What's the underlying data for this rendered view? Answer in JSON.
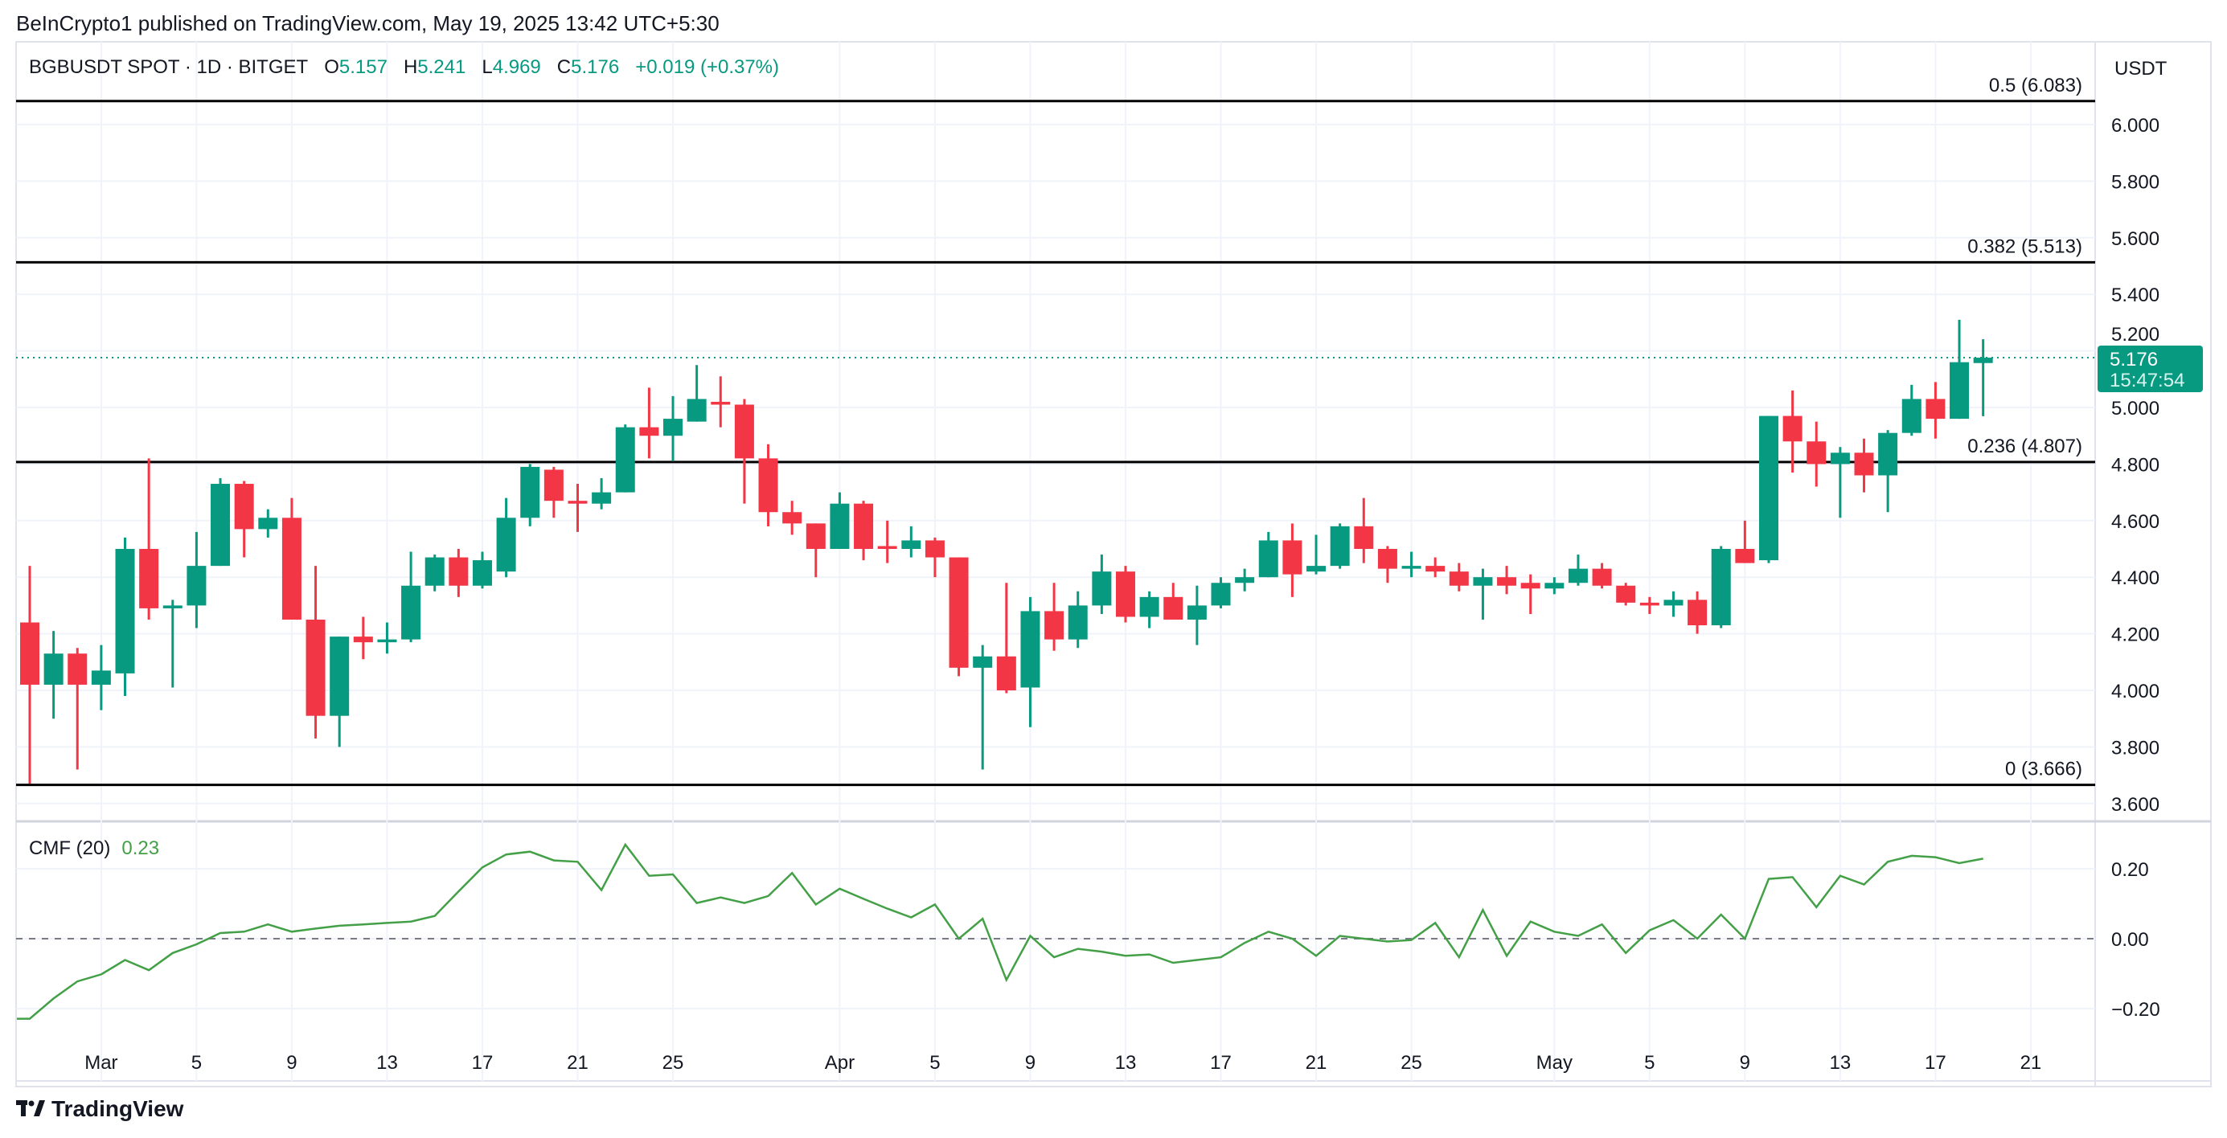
{
  "header": {
    "published": "BeInCrypto1 published on TradingView.com, May 19, 2025 13:42 UTC+5:30"
  },
  "legend": {
    "symbol": "BGBUSDT SPOT · 1D · BITGET",
    "o_label": "O",
    "o": "5.157",
    "h_label": "H",
    "h": "5.241",
    "l_label": "L",
    "l": "4.969",
    "c_label": "C",
    "c": "5.176",
    "change": "+0.019 (+0.37%)"
  },
  "currency": "USDT",
  "last_price": {
    "price": "5.176",
    "countdown": "15:47:54"
  },
  "indicator": {
    "name": "CMF (20)",
    "value": "0.23"
  },
  "footer": {
    "brand": "TradingView"
  },
  "colors": {
    "up": "#089981",
    "down": "#F23645",
    "cmf": "#43a047",
    "fib": "#000000",
    "grid": "#f0f3fa"
  },
  "chart_data": [
    {
      "type": "candlestick",
      "price_ticks": [
        "3.600",
        "3.800",
        "4.000",
        "4.200",
        "4.400",
        "4.600",
        "4.800",
        "5.000",
        "5.200",
        "5.400",
        "5.600",
        "5.800",
        "6.000"
      ],
      "ylim": [
        3.55,
        6.17
      ],
      "x_ticks": [
        {
          "label": "Mar",
          "date": "Mar 1"
        },
        {
          "label": "5",
          "date": "Mar 5"
        },
        {
          "label": "9",
          "date": "Mar 9"
        },
        {
          "label": "13",
          "date": "Mar 13"
        },
        {
          "label": "17",
          "date": "Mar 17"
        },
        {
          "label": "21",
          "date": "Mar 21"
        },
        {
          "label": "25",
          "date": "Mar 25"
        },
        {
          "label": "Apr",
          "date": "Apr 1"
        },
        {
          "label": "5",
          "date": "Apr 5"
        },
        {
          "label": "9",
          "date": "Apr 9"
        },
        {
          "label": "13",
          "date": "Apr 13"
        },
        {
          "label": "17",
          "date": "Apr 17"
        },
        {
          "label": "21",
          "date": "Apr 21"
        },
        {
          "label": "25",
          "date": "Apr 25"
        },
        {
          "label": "May",
          "date": "May 1"
        },
        {
          "label": "5",
          "date": "May 5"
        },
        {
          "label": "9",
          "date": "May 9"
        },
        {
          "label": "13",
          "date": "May 13"
        },
        {
          "label": "17",
          "date": "May 17"
        },
        {
          "label": "21",
          "date": "May 21"
        }
      ],
      "fib_levels": [
        {
          "label": "0.5 (6.083)",
          "value": 6.083
        },
        {
          "label": "0.382 (5.513)",
          "value": 5.513
        },
        {
          "label": "0.236 (4.807)",
          "value": 4.807
        },
        {
          "label": "0 (3.666)",
          "value": 3.666
        }
      ],
      "candles_columns": [
        "date",
        "open",
        "high",
        "low",
        "close"
      ],
      "candles": [
        [
          "Feb 26",
          4.24,
          4.44,
          3.67,
          4.02
        ],
        [
          "Feb 27",
          4.02,
          4.21,
          3.9,
          4.13
        ],
        [
          "Feb 28",
          4.13,
          4.15,
          3.72,
          4.02
        ],
        [
          "Mar 1",
          4.02,
          4.16,
          3.93,
          4.07
        ],
        [
          "Mar 2",
          4.06,
          4.54,
          3.98,
          4.5
        ],
        [
          "Mar 3",
          4.5,
          4.82,
          4.25,
          4.29
        ],
        [
          "Mar 4",
          4.29,
          4.32,
          4.01,
          4.3
        ],
        [
          "Mar 5",
          4.3,
          4.56,
          4.22,
          4.44
        ],
        [
          "Mar 6",
          4.44,
          4.75,
          4.44,
          4.73
        ],
        [
          "Mar 7",
          4.73,
          4.74,
          4.47,
          4.57
        ],
        [
          "Mar 8",
          4.57,
          4.64,
          4.54,
          4.61
        ],
        [
          "Mar 9",
          4.61,
          4.68,
          4.25,
          4.25
        ],
        [
          "Mar 10",
          4.25,
          4.44,
          3.83,
          3.91
        ],
        [
          "Mar 11",
          3.91,
          4.19,
          3.8,
          4.19
        ],
        [
          "Mar 12",
          4.19,
          4.26,
          4.11,
          4.17
        ],
        [
          "Mar 13",
          4.17,
          4.24,
          4.13,
          4.18
        ],
        [
          "Mar 14",
          4.18,
          4.49,
          4.17,
          4.37
        ],
        [
          "Mar 15",
          4.37,
          4.48,
          4.35,
          4.47
        ],
        [
          "Mar 16",
          4.47,
          4.5,
          4.33,
          4.37
        ],
        [
          "Mar 17",
          4.37,
          4.49,
          4.36,
          4.46
        ],
        [
          "Mar 18",
          4.42,
          4.68,
          4.4,
          4.61
        ],
        [
          "Mar 19",
          4.61,
          4.8,
          4.58,
          4.79
        ],
        [
          "Mar 20",
          4.78,
          4.79,
          4.61,
          4.67
        ],
        [
          "Mar 21",
          4.67,
          4.73,
          4.56,
          4.66
        ],
        [
          "Mar 22",
          4.66,
          4.75,
          4.64,
          4.7
        ],
        [
          "Mar 23",
          4.7,
          4.94,
          4.7,
          4.93
        ],
        [
          "Mar 24",
          4.93,
          5.07,
          4.82,
          4.9
        ],
        [
          "Mar 25",
          4.9,
          5.04,
          4.81,
          4.96
        ],
        [
          "Mar 26",
          4.95,
          5.15,
          4.95,
          5.03
        ],
        [
          "Mar 27",
          5.02,
          5.11,
          4.93,
          5.01
        ],
        [
          "Mar 28",
          5.01,
          5.03,
          4.66,
          4.82
        ],
        [
          "Mar 29",
          4.82,
          4.87,
          4.58,
          4.63
        ],
        [
          "Mar 30",
          4.63,
          4.67,
          4.55,
          4.59
        ],
        [
          "Mar 31",
          4.59,
          4.59,
          4.4,
          4.5
        ],
        [
          "Apr 1",
          4.5,
          4.7,
          4.5,
          4.66
        ],
        [
          "Apr 2",
          4.66,
          4.67,
          4.46,
          4.5
        ],
        [
          "Apr 3",
          4.51,
          4.6,
          4.45,
          4.5
        ],
        [
          "Apr 4",
          4.5,
          4.58,
          4.47,
          4.53
        ],
        [
          "Apr 5",
          4.53,
          4.54,
          4.4,
          4.47
        ],
        [
          "Apr 6",
          4.47,
          4.47,
          4.05,
          4.08
        ],
        [
          "Apr 7",
          4.08,
          4.16,
          3.72,
          4.12
        ],
        [
          "Apr 8",
          4.12,
          4.38,
          3.99,
          4.0
        ],
        [
          "Apr 9",
          4.01,
          4.33,
          3.87,
          4.28
        ],
        [
          "Apr 10",
          4.28,
          4.38,
          4.14,
          4.18
        ],
        [
          "Apr 11",
          4.18,
          4.35,
          4.15,
          4.3
        ],
        [
          "Apr 12",
          4.3,
          4.48,
          4.27,
          4.42
        ],
        [
          "Apr 13",
          4.42,
          4.44,
          4.24,
          4.26
        ],
        [
          "Apr 14",
          4.26,
          4.35,
          4.22,
          4.33
        ],
        [
          "Apr 15",
          4.33,
          4.38,
          4.25,
          4.25
        ],
        [
          "Apr 16",
          4.25,
          4.37,
          4.16,
          4.3
        ],
        [
          "Apr 17",
          4.3,
          4.4,
          4.29,
          4.38
        ],
        [
          "Apr 18",
          4.38,
          4.43,
          4.35,
          4.4
        ],
        [
          "Apr 19",
          4.4,
          4.56,
          4.4,
          4.53
        ],
        [
          "Apr 20",
          4.53,
          4.59,
          4.33,
          4.41
        ],
        [
          "Apr 21",
          4.42,
          4.55,
          4.41,
          4.44
        ],
        [
          "Apr 22",
          4.44,
          4.59,
          4.43,
          4.58
        ],
        [
          "Apr 23",
          4.58,
          4.68,
          4.45,
          4.5
        ],
        [
          "Apr 24",
          4.5,
          4.51,
          4.38,
          4.43
        ],
        [
          "Apr 25",
          4.43,
          4.49,
          4.4,
          4.44
        ],
        [
          "Apr 26",
          4.44,
          4.47,
          4.4,
          4.42
        ],
        [
          "Apr 27",
          4.42,
          4.45,
          4.35,
          4.37
        ],
        [
          "Apr 28",
          4.37,
          4.43,
          4.25,
          4.4
        ],
        [
          "Apr 29",
          4.4,
          4.44,
          4.34,
          4.37
        ],
        [
          "Apr 30",
          4.38,
          4.41,
          4.27,
          4.36
        ],
        [
          "May 1",
          4.36,
          4.4,
          4.34,
          4.38
        ],
        [
          "May 2",
          4.38,
          4.48,
          4.37,
          4.43
        ],
        [
          "May 3",
          4.43,
          4.45,
          4.36,
          4.37
        ],
        [
          "May 4",
          4.37,
          4.38,
          4.3,
          4.31
        ],
        [
          "May 5",
          4.31,
          4.33,
          4.27,
          4.3
        ],
        [
          "May 6",
          4.3,
          4.35,
          4.26,
          4.32
        ],
        [
          "May 7",
          4.32,
          4.35,
          4.2,
          4.23
        ],
        [
          "May 8",
          4.23,
          4.51,
          4.22,
          4.5
        ],
        [
          "May 9",
          4.5,
          4.6,
          4.45,
          4.45
        ],
        [
          "May 10",
          4.46,
          4.97,
          4.45,
          4.97
        ],
        [
          "May 11",
          4.97,
          5.06,
          4.77,
          4.88
        ],
        [
          "May 12",
          4.88,
          4.95,
          4.72,
          4.8
        ],
        [
          "May 13",
          4.8,
          4.86,
          4.61,
          4.84
        ],
        [
          "May 14",
          4.84,
          4.89,
          4.7,
          4.76
        ],
        [
          "May 15",
          4.76,
          4.92,
          4.63,
          4.91
        ],
        [
          "May 16",
          4.91,
          5.08,
          4.9,
          5.03
        ],
        [
          "May 17",
          5.03,
          5.09,
          4.89,
          4.96
        ],
        [
          "May 18",
          4.96,
          5.31,
          4.96,
          5.16
        ],
        [
          "May 19",
          5.157,
          5.241,
          4.969,
          5.176
        ]
      ]
    },
    {
      "type": "line",
      "name": "CMF (20)",
      "y_ticks": [
        "0.20",
        "0.00",
        "−0.20"
      ],
      "ylim": [
        -0.32,
        0.33
      ],
      "zero_line": "dashed",
      "values": [
        -0.229,
        -0.171,
        -0.122,
        -0.102,
        -0.061,
        -0.09,
        -0.041,
        -0.016,
        0.016,
        0.02,
        0.041,
        0.02,
        0.029,
        0.037,
        0.041,
        0.045,
        0.049,
        0.065,
        0.135,
        0.204,
        0.241,
        0.249,
        0.224,
        0.22,
        0.139,
        0.269,
        0.18,
        0.184,
        0.102,
        0.118,
        0.102,
        0.122,
        0.188,
        0.098,
        0.143,
        0.114,
        0.086,
        0.061,
        0.098,
        0.0,
        0.057,
        -0.118,
        0.008,
        -0.053,
        -0.029,
        -0.037,
        -0.049,
        -0.045,
        -0.069,
        -0.061,
        -0.053,
        -0.012,
        0.02,
        0.0,
        -0.049,
        0.008,
        0.0,
        -0.008,
        -0.004,
        0.045,
        -0.053,
        0.082,
        -0.049,
        0.049,
        0.02,
        0.008,
        0.041,
        -0.041,
        0.024,
        0.053,
        0.0,
        0.069,
        0.0,
        0.171,
        0.176,
        0.09,
        0.18,
        0.155,
        0.22,
        0.237,
        0.233,
        0.216,
        0.229
      ]
    }
  ]
}
